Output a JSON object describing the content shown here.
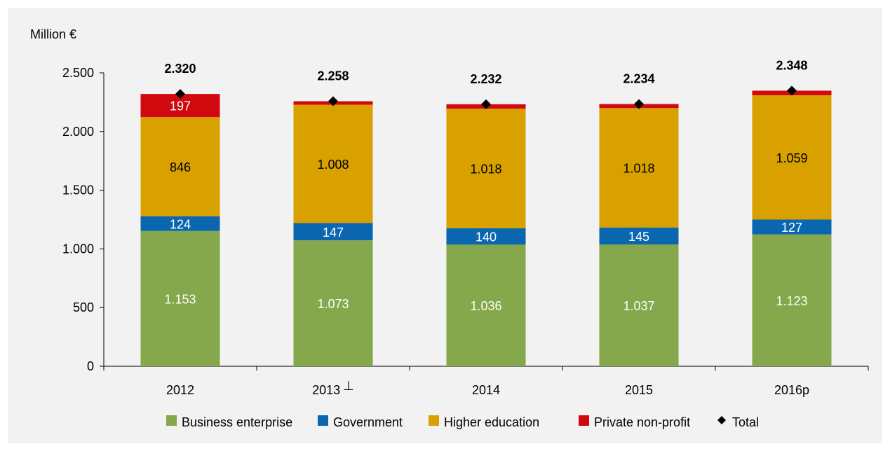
{
  "chart_data": {
    "type": "bar",
    "stacked": true,
    "ylabel": "Million €",
    "ylim": [
      0,
      2500
    ],
    "yticks": [
      0,
      500,
      1000,
      1500,
      2000,
      2500
    ],
    "ytick_labels": [
      "0",
      "500",
      "1.000",
      "1.500",
      "2.000",
      "2.500"
    ],
    "categories": [
      "2012",
      "2013",
      "2014",
      "2015",
      "2016p"
    ],
    "category_marks": [
      "",
      "⊥",
      "",
      "",
      ""
    ],
    "series": [
      {
        "name": "Business enterprise",
        "color": "#84a84b",
        "label_color": "#ffffff",
        "values": [
          1153,
          1073,
          1036,
          1037,
          1123
        ],
        "labels": [
          "1.153",
          "1.073",
          "1.036",
          "1.037",
          "1.123"
        ]
      },
      {
        "name": "Government",
        "color": "#0b66b0",
        "label_color": "#ffffff",
        "values": [
          124,
          147,
          140,
          145,
          127
        ],
        "labels": [
          "124",
          "147",
          "140",
          "145",
          "127"
        ]
      },
      {
        "name": "Higher education",
        "color": "#d9a100",
        "label_color": "#000000",
        "values": [
          846,
          1008,
          1018,
          1018,
          1059
        ],
        "labels": [
          "846",
          "1.008",
          "1.018",
          "1.018",
          "1.059"
        ]
      },
      {
        "name": "Private non-profit",
        "color": "#d0090f",
        "label_color": "#ffffff",
        "values": [
          197,
          30,
          38,
          34,
          39
        ],
        "labels": [
          "197",
          "",
          "",
          "",
          ""
        ]
      }
    ],
    "total": {
      "name": "Total",
      "marker": "diamond",
      "color": "#000000",
      "values": [
        2320,
        2258,
        2232,
        2234,
        2348
      ],
      "labels": [
        "2.320",
        "2.258",
        "2.232",
        "2.234",
        "2.348"
      ]
    },
    "legend_position": "bottom",
    "grid": false
  }
}
